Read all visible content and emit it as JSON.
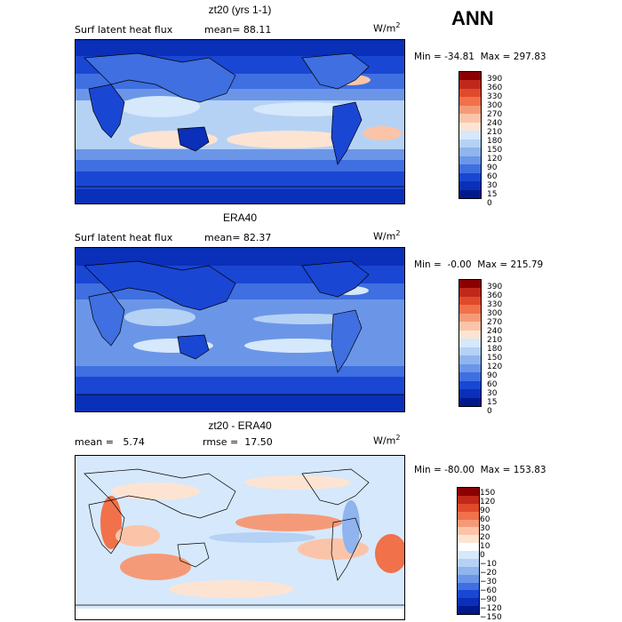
{
  "season": "ANN",
  "panels": [
    {
      "title": "zt20 (yrs 1-1)",
      "left_label": "Surf latent heat flux",
      "stat1": "mean=  88.11",
      "stat2": "",
      "unit": "W/m",
      "unit_sup": "2",
      "minmax": "Min = -34.81  Max = 297.83",
      "colorbar_colors": [
        "#8b0000",
        "#c0281b",
        "#e04a2a",
        "#f0714a",
        "#f59a78",
        "#fbc4a8",
        "#fde4d2",
        "#d6e8fb",
        "#b5d2f5",
        "#8fb4ee",
        "#6b96e8",
        "#3f6fe0",
        "#1a46d4",
        "#0a2fb8",
        "#001a8c"
      ],
      "colorbar_labels": [
        "390",
        "360",
        "330",
        "300",
        "270",
        "240",
        "210",
        "180",
        "150",
        "120",
        "90",
        "60",
        "30",
        "15",
        "0"
      ]
    },
    {
      "title": "ERA40",
      "left_label": "Surf latent heat flux",
      "stat1": "mean=  82.37",
      "stat2": "",
      "unit": "W/m",
      "unit_sup": "2",
      "minmax": "Min =  -0.00  Max = 215.79",
      "colorbar_colors": [
        "#8b0000",
        "#c0281b",
        "#e04a2a",
        "#f0714a",
        "#f59a78",
        "#fbc4a8",
        "#fde4d2",
        "#d6e8fb",
        "#b5d2f5",
        "#8fb4ee",
        "#6b96e8",
        "#3f6fe0",
        "#1a46d4",
        "#0a2fb8",
        "#001a8c"
      ],
      "colorbar_labels": [
        "390",
        "360",
        "330",
        "300",
        "270",
        "240",
        "210",
        "180",
        "150",
        "120",
        "90",
        "60",
        "30",
        "15",
        "0"
      ]
    },
    {
      "title": "zt20 - ERA40",
      "left_label": "mean =   5.74",
      "stat1": "",
      "stat2": "rmse =  17.50",
      "unit": "W/m",
      "unit_sup": "2",
      "minmax": "Min = -80.00  Max = 153.83",
      "colorbar_colors": [
        "#8b0000",
        "#c0281b",
        "#e04a2a",
        "#f0714a",
        "#f59a78",
        "#fbc4a8",
        "#fde4d2",
        "#ffffff",
        "#d6e8fb",
        "#b5d2f5",
        "#8fb4ee",
        "#6b96e8",
        "#3f6fe0",
        "#1a46d4",
        "#0a2fb8",
        "#001a8c"
      ],
      "colorbar_labels": [
        "150",
        "120",
        "90",
        "60",
        "30",
        "20",
        "10",
        "0",
        "−10",
        "−20",
        "−30",
        "−60",
        "−90",
        "−120",
        "−150"
      ]
    }
  ]
}
